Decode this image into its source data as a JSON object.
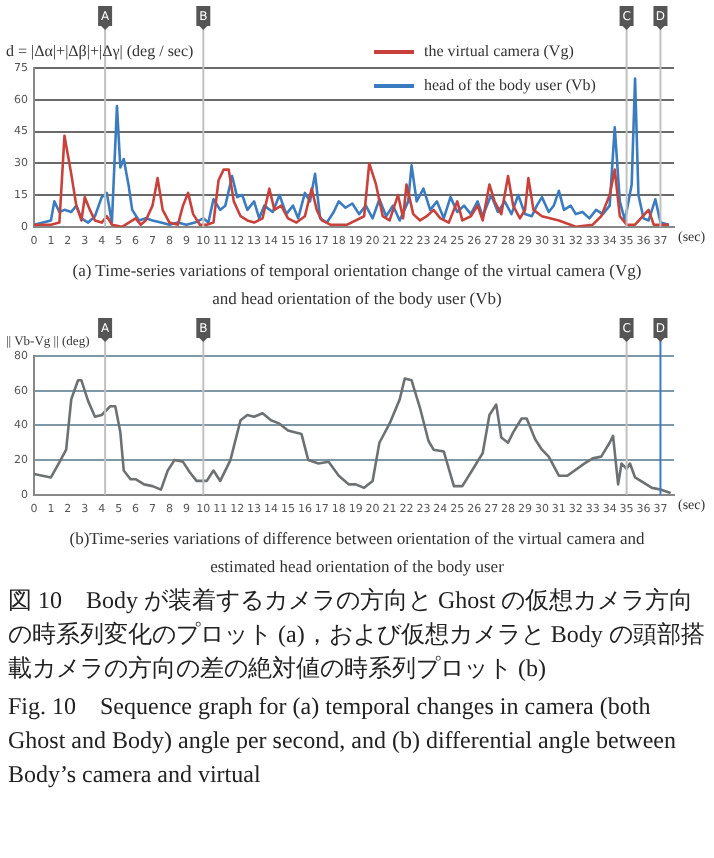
{
  "chart_data": [
    {
      "type": "line",
      "ylabel": "d = |Δα|+|Δβ|+|Δγ| (deg / sec)",
      "xlabel": "(sec)",
      "xlim": [
        0,
        37.8
      ],
      "xticks": [
        0,
        1,
        2,
        3,
        4,
        5,
        6,
        7,
        8,
        9,
        10,
        11,
        12,
        13,
        14,
        15,
        16,
        17,
        18,
        19,
        20,
        21,
        22,
        23,
        24,
        25,
        26,
        27,
        28,
        29,
        30,
        31,
        32,
        33,
        34,
        35,
        36,
        37
      ],
      "ylim": [
        0,
        75
      ],
      "yticks": [
        0,
        15,
        30,
        45,
        60,
        75
      ],
      "grid": "y",
      "legend": "top right",
      "series": [
        {
          "name": "the virtual camera (Vg)",
          "color": "#c8413b",
          "x": [
            0,
            1,
            1.5,
            1.8,
            2.2,
            2.5,
            2.8,
            3.0,
            3.3,
            3.6,
            4.0,
            4.3,
            4.6,
            5.2,
            5.6,
            6.0,
            6.3,
            6.6,
            7.0,
            7.3,
            7.6,
            8.0,
            8.5,
            8.8,
            9.1,
            9.4,
            9.8,
            10.2,
            10.6,
            10.9,
            11.2,
            11.5,
            11.8,
            12.2,
            12.6,
            13.0,
            13.5,
            13.9,
            14.2,
            14.6,
            15.0,
            15.5,
            16.0,
            16.4,
            16.7,
            17.0,
            17.5,
            18.5,
            19.5,
            19.8,
            20.2,
            20.6,
            21.0,
            21.5,
            21.8,
            22.0,
            22.4,
            22.8,
            23.2,
            23.6,
            24.0,
            24.5,
            25.0,
            25.3,
            25.8,
            26.2,
            26.5,
            26.9,
            27.2,
            27.6,
            28.0,
            28.3,
            28.7,
            29.0,
            29.2,
            29.5,
            30.0,
            31.0,
            32.0,
            33.0,
            33.5,
            34.0,
            34.3,
            34.6,
            35.0,
            35.5,
            36.3,
            36.6,
            37.5
          ],
          "values": [
            1,
            1,
            2,
            43,
            25,
            10,
            3,
            14,
            8,
            3,
            2,
            5,
            1,
            0,
            2,
            4,
            1,
            3,
            10,
            23,
            8,
            2,
            1,
            10,
            16,
            6,
            1,
            1,
            2,
            22,
            27,
            27,
            12,
            5,
            3,
            2,
            4,
            18,
            8,
            10,
            4,
            2,
            5,
            18,
            8,
            3,
            1,
            1,
            5,
            30,
            20,
            5,
            3,
            15,
            4,
            20,
            6,
            3,
            5,
            8,
            4,
            2,
            12,
            3,
            5,
            10,
            3,
            20,
            12,
            6,
            24,
            10,
            4,
            8,
            23,
            8,
            5,
            3,
            0,
            1,
            5,
            15,
            27,
            5,
            1,
            1,
            8,
            1,
            1
          ]
        },
        {
          "name": "head of the body user (Vb)",
          "color": "#3a7cbf",
          "x": [
            0,
            1.0,
            1.2,
            1.5,
            1.8,
            2.2,
            2.5,
            2.8,
            3.2,
            3.6,
            4.0,
            4.3,
            4.6,
            4.9,
            5.1,
            5.3,
            5.6,
            5.8,
            6.2,
            6.6,
            7.0,
            7.5,
            8.0,
            8.5,
            9.0,
            9.5,
            10.0,
            10.3,
            10.6,
            11.0,
            11.3,
            11.7,
            12.0,
            12.3,
            12.6,
            13.0,
            13.3,
            13.6,
            14.1,
            14.5,
            14.9,
            15.3,
            15.6,
            16.0,
            16.3,
            16.6,
            16.9,
            17.3,
            17.7,
            18.0,
            18.4,
            18.8,
            19.2,
            19.6,
            20.0,
            20.4,
            20.8,
            21.2,
            21.6,
            22.1,
            22.3,
            22.6,
            23.0,
            23.4,
            23.8,
            24.2,
            24.6,
            25.0,
            25.4,
            25.8,
            26.2,
            26.5,
            27.0,
            27.4,
            27.8,
            28.2,
            28.6,
            29.0,
            29.4,
            29.7,
            30.0,
            30.4,
            30.7,
            31.0,
            31.3,
            31.7,
            32.0,
            32.4,
            32.8,
            33.2,
            33.6,
            34.0,
            34.3,
            34.6,
            34.9,
            35.3,
            35.5,
            35.7,
            36.0,
            36.3,
            36.7,
            37.0,
            37.5
          ],
          "values": [
            1,
            3,
            12,
            7,
            8,
            7,
            10,
            4,
            2,
            5,
            14,
            16,
            2,
            57,
            28,
            32,
            19,
            8,
            3,
            4,
            3,
            2,
            1,
            2,
            1,
            2,
            4,
            2,
            13,
            8,
            10,
            24,
            14,
            15,
            8,
            12,
            4,
            10,
            7,
            15,
            6,
            10,
            4,
            16,
            12,
            25,
            4,
            2,
            7,
            12,
            9,
            11,
            6,
            10,
            4,
            13,
            5,
            10,
            3,
            12,
            29,
            12,
            18,
            8,
            12,
            4,
            14,
            7,
            10,
            6,
            12,
            5,
            15,
            7,
            12,
            6,
            15,
            6,
            5,
            10,
            14,
            7,
            10,
            17,
            8,
            10,
            6,
            7,
            4,
            8,
            6,
            10,
            47,
            12,
            3,
            20,
            70,
            15,
            4,
            3,
            13,
            2,
            1
          ]
        }
      ],
      "ref_lines": [
        {
          "axis": "x",
          "value": 4.2,
          "label": "A",
          "color": "#c0c0c0"
        },
        {
          "axis": "x",
          "value": 10,
          "label": "B",
          "color": "#c0c0c0"
        },
        {
          "axis": "x",
          "value": 35,
          "label": "C",
          "color": "#c0c0c0"
        },
        {
          "axis": "x",
          "value": 37,
          "label": "D",
          "color": "#c0c0c0"
        }
      ],
      "annotations": [
        "(a) Time-series variations of temporal orientation change of the virtual camera (Vg) and head orientation of the body user (Vb)"
      ]
    },
    {
      "type": "line",
      "ylabel": "|| Vb-Vg || (deg)",
      "xlabel": "(sec)",
      "xlim": [
        0,
        37.8
      ],
      "xticks": [
        0,
        1,
        2,
        3,
        4,
        5,
        6,
        7,
        8,
        9,
        10,
        11,
        12,
        13,
        14,
        15,
        16,
        17,
        18,
        19,
        20,
        21,
        22,
        23,
        24,
        25,
        26,
        27,
        28,
        29,
        30,
        31,
        32,
        33,
        34,
        35,
        36,
        37
      ],
      "ylim": [
        0,
        80
      ],
      "yticks": [
        0,
        20,
        40,
        60,
        80
      ],
      "grid": "y",
      "series": [
        {
          "color": "#6d7173",
          "x": [
            0,
            0.5,
            1.0,
            1.4,
            1.9,
            2.2,
            2.6,
            2.8,
            3.2,
            3.6,
            4.0,
            4.5,
            4.8,
            5.1,
            5.3,
            5.7,
            6.0,
            6.5,
            7.0,
            7.5,
            7.9,
            8.3,
            8.8,
            9.2,
            9.6,
            10.2,
            10.6,
            11.0,
            11.6,
            12.2,
            12.6,
            13.0,
            13.5,
            14.0,
            14.5,
            15.0,
            15.8,
            16.2,
            16.8,
            17.4,
            18.0,
            18.6,
            19.0,
            19.5,
            20.0,
            20.4,
            21.0,
            21.6,
            21.9,
            22.3,
            22.8,
            23.3,
            23.6,
            24.2,
            24.8,
            25.3,
            26.0,
            26.5,
            26.9,
            27.3,
            27.6,
            28.0,
            28.3,
            28.8,
            29.1,
            29.6,
            30.0,
            30.4,
            31.0,
            31.5,
            32.5,
            33.0,
            33.5,
            34.0,
            34.2,
            34.5,
            34.7,
            35.0,
            35.2,
            35.5,
            36.0,
            36.5,
            37.0,
            37.6
          ],
          "values": [
            12,
            11,
            10,
            17,
            26,
            55,
            66,
            66,
            54,
            45,
            46,
            51,
            51,
            36,
            14,
            9,
            9,
            6,
            5,
            3,
            14,
            20,
            19,
            13,
            8,
            8,
            14,
            8,
            20,
            43,
            46,
            45,
            47,
            43,
            41,
            37,
            35,
            20,
            18,
            19,
            11,
            6,
            6,
            4,
            8,
            30,
            41,
            55,
            67,
            66,
            50,
            31,
            26,
            25,
            5,
            5,
            16,
            24,
            46,
            52,
            33,
            30,
            36,
            44,
            44,
            32,
            26,
            22,
            11,
            11,
            18,
            21,
            22,
            30,
            34,
            6,
            18,
            15,
            18,
            10,
            7,
            4,
            3,
            1
          ]
        }
      ],
      "ref_lines": [
        {
          "axis": "x",
          "value": 4.2,
          "label": "A",
          "color": "#c0c0c0"
        },
        {
          "axis": "x",
          "value": 10,
          "label": "B",
          "color": "#c0c0c0"
        },
        {
          "axis": "x",
          "value": 35,
          "label": "C",
          "color": "#c0c0c0"
        },
        {
          "axis": "x",
          "value": 37,
          "label": "D",
          "color": "#3a7cbf"
        }
      ],
      "annotations": [
        "(b)Time-series variations of difference between orientation of the virtual camera and estimated  head orientation of the body user",
        "図 10　Body が装着するカメラの方向と Ghost の仮想カメラ方向の時系列変化のプロット (a)，および仮想カメラと Body の頭部搭載カメラの方向の差の絶対値の時系列プロット (b)",
        "Fig. 10　Sequence graph for (a) temporal changes in camera (both Ghost and Body) angle per second, and (b) differential angle between Body’s camera and virtual"
      ]
    }
  ]
}
